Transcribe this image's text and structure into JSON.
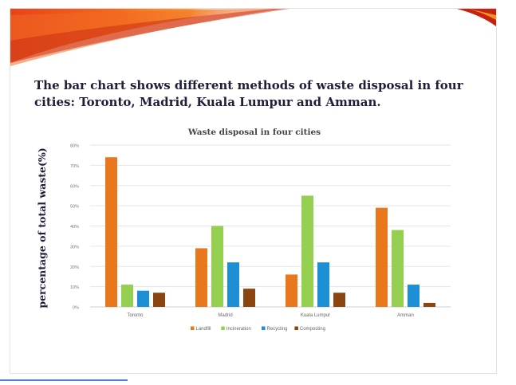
{
  "slide": {
    "heading": "The bar chart shows different methods of waste disposal in four cities: Toronto, Madrid, Kuala Lumpur and Amman."
  },
  "chart_data": {
    "type": "bar",
    "title": "Waste disposal in four cities",
    "xlabel": "",
    "ylabel": "percentage of total waste(%)",
    "categories": [
      "Toronto",
      "Madrid",
      "Kuala Lumpur",
      "Amman"
    ],
    "series": [
      {
        "name": "Landfill",
        "color": "#e9781c",
        "values": [
          74,
          29,
          16,
          49
        ]
      },
      {
        "name": "Incineration",
        "color": "#94cf4f",
        "values": [
          11,
          40,
          55,
          38
        ]
      },
      {
        "name": "Recycling",
        "color": "#1c8fd6",
        "values": [
          8,
          22,
          22,
          11
        ]
      },
      {
        "name": "Composting",
        "color": "#8b4510",
        "values": [
          7,
          9,
          7,
          2
        ]
      }
    ],
    "yticks": [
      "0%",
      "10%",
      "20%",
      "30%",
      "40%",
      "50%",
      "60%",
      "70%",
      "80%"
    ],
    "ylim": [
      0,
      80
    ],
    "grid": true,
    "legend": "bottom"
  },
  "colors": {
    "banner_orange": "#f0541e",
    "banner_red": "#c01f10",
    "heading_text": "#1f1f3a",
    "gridline": "#e6e6e6"
  }
}
